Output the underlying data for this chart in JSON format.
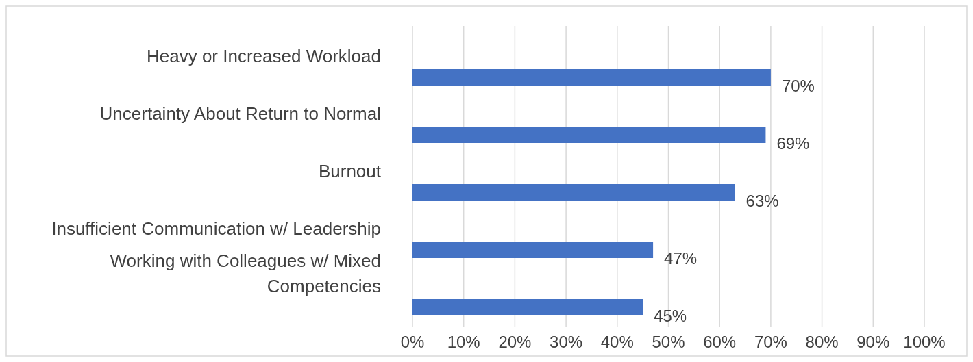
{
  "chart_data": {
    "type": "bar",
    "orientation": "horizontal",
    "categories": [
      "Heavy or Increased Workload",
      "Uncertainty About Return to Normal",
      "Burnout",
      "Insufficient Communication w/ Leadership",
      "Working with Colleagues w/ Mixed Competencies"
    ],
    "values": [
      70,
      69,
      63,
      47,
      45
    ],
    "value_labels": [
      "70%",
      "69%",
      "63%",
      "47%",
      "45%"
    ],
    "color": "#4472c4",
    "xlim": [
      0,
      100
    ],
    "xticks": [
      {
        "value": 0,
        "label": "0%"
      },
      {
        "value": 10,
        "label": "10%"
      },
      {
        "value": 20,
        "label": "20%"
      },
      {
        "value": 30,
        "label": "30%"
      },
      {
        "value": 40,
        "label": "40%"
      },
      {
        "value": 50,
        "label": "50%"
      },
      {
        "value": 60,
        "label": "60%"
      },
      {
        "value": 70,
        "label": "70%"
      },
      {
        "value": 80,
        "label": "80%"
      },
      {
        "value": 90,
        "label": "90%"
      },
      {
        "value": 100,
        "label": "100%"
      }
    ],
    "grid": "x"
  }
}
